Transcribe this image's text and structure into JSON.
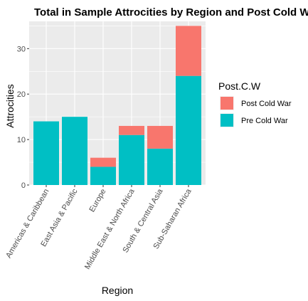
{
  "chart_data": {
    "type": "bar",
    "stacked": true,
    "title": "Total in Sample Attrocities by Region and Post Cold War",
    "xlabel": "Region",
    "ylabel": "Attrocities",
    "categories": [
      "Americas & Caribbean",
      "East Asia & Pacific",
      "Europe",
      "Middle East & North Africa",
      "South & Central Asia",
      "Sub-Saharan Africa"
    ],
    "series": [
      {
        "name": "Pre Cold War",
        "color": "#00BFC4",
        "values": [
          14,
          15,
          4,
          11,
          8,
          24
        ]
      },
      {
        "name": "Post Cold War",
        "color": "#F8766D",
        "values": [
          0,
          0,
          2,
          2,
          5,
          11
        ]
      }
    ],
    "ylim": [
      0,
      36
    ],
    "y_ticks": [
      0,
      10,
      20,
      30
    ],
    "grid": true,
    "panel_background": "#EBEBEB",
    "legend": {
      "title": "Post.C.W",
      "placement": "right",
      "entries": [
        "Post Cold War",
        "Pre Cold War"
      ]
    }
  }
}
